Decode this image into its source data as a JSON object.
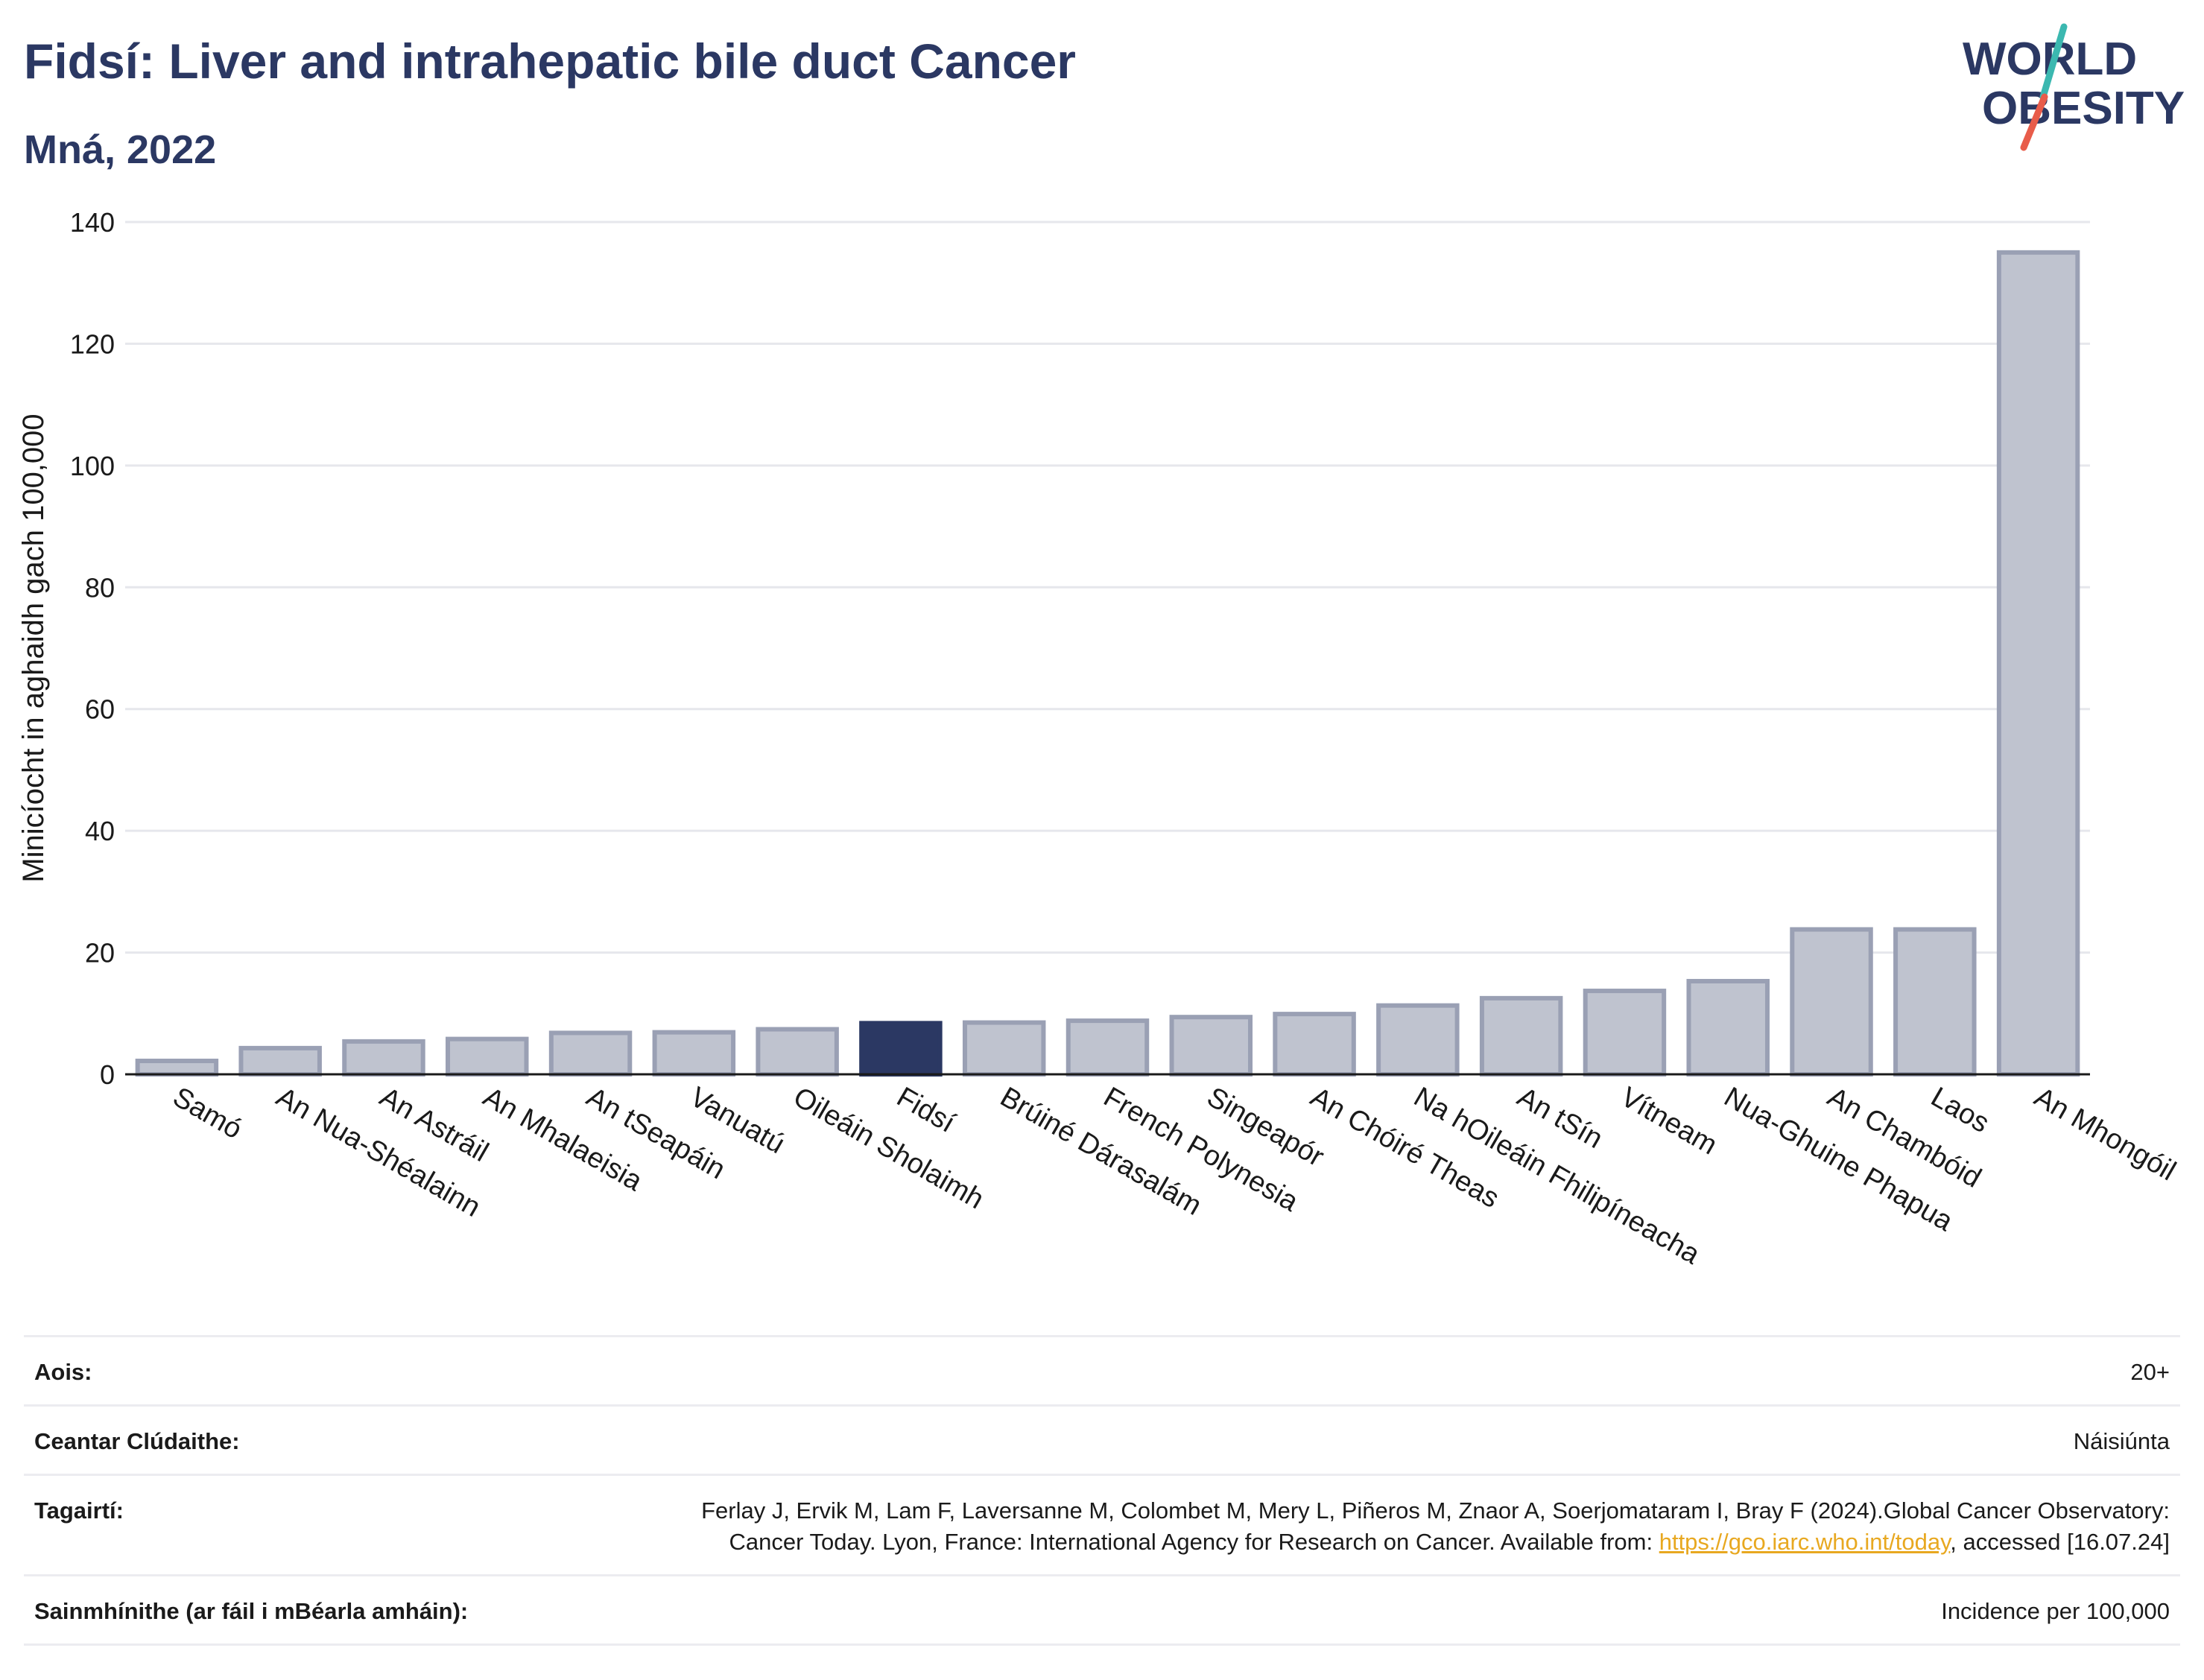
{
  "header": {
    "title": "Fidsí: Liver and intrahepatic bile duct Cancer",
    "subtitle": "Mná, 2022"
  },
  "logo": {
    "line1": "WORLD",
    "line2": "OBESITY"
  },
  "colors": {
    "highlight": "#2b3863",
    "bar": "#bfc3cf",
    "bar_edge": "#9aa0b4",
    "title": "#2b3863",
    "link": "#e8a820"
  },
  "chart_data": {
    "type": "bar",
    "ylabel": "Minicíocht in aghaidh gach 100,000",
    "xlabel": "",
    "ylim": [
      0,
      140
    ],
    "yticks": [
      0,
      20,
      40,
      60,
      80,
      100,
      120,
      140
    ],
    "grid": true,
    "categories": [
      "Samó",
      "An Nua-Shéalainn",
      "An Astráil",
      "An Mhalaeisia",
      "An tSeapáin",
      "Vanuatú",
      "Oileáin Sholaimh",
      "Fidsí",
      "Brúiné Dárasalám",
      "French Polynesia",
      "Singeapór",
      "An Chóiré Theas",
      "Na hOileáin Fhilipíneacha",
      "An tSín",
      "Vítneam",
      "Nua-Ghuine Phapua",
      "An Chambóid",
      "Laos",
      "An Mhongóil"
    ],
    "values": [
      2.2,
      4.3,
      5.4,
      5.8,
      6.8,
      6.9,
      7.4,
      8.4,
      8.5,
      8.8,
      9.4,
      9.9,
      11.3,
      12.5,
      13.7,
      15.3,
      23.8,
      23.8,
      135.0
    ],
    "highlight": "Fidsí"
  },
  "info": {
    "rows": [
      {
        "label": "Aois:",
        "value": "20+"
      },
      {
        "label": "Ceantar Clúdaithe:",
        "value": "Náisiúnta"
      },
      {
        "label": "Tagairtí:",
        "value_pre": "Ferlay J, Ervik M, Lam F, Laversanne M, Colombet M, Mery L, Piñeros M, Znaor A, Soerjomataram I, Bray F (2024).Global Cancer Observatory: Cancer Today. Lyon, France: International Agency for Research on Cancer. Available from: ",
        "link": "https://gco.iarc.who.int/today",
        "value_post": ", accessed [16.07.24]"
      },
      {
        "label": "Sainmhínithe (ar fáil i mBéarla amháin):",
        "value": "Incidence per 100,000"
      }
    ]
  }
}
